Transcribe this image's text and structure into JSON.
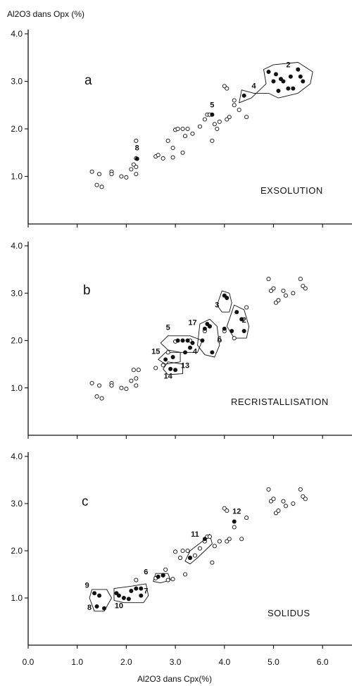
{
  "chart_data": {
    "type": "scatter",
    "ylabel": "Al2O3 dans Opx (%)",
    "xlabel": "Al2O3 dans Cpx(%)",
    "xlim": [
      0,
      6.6
    ],
    "ylim": [
      0,
      4.0
    ],
    "x_ticks": [
      "0.0",
      "1.0",
      "2.0",
      "3.0",
      "4.0",
      "5.0",
      "6.0"
    ],
    "y_ticks": [
      "1.0",
      "2.0",
      "3.0",
      "4.0"
    ],
    "panels": [
      {
        "letter": "a",
        "name": "EXSOLUTION",
        "open_points": [
          [
            1.3,
            1.1
          ],
          [
            1.45,
            1.05
          ],
          [
            1.4,
            0.82
          ],
          [
            1.5,
            0.78
          ],
          [
            1.7,
            1.1
          ],
          [
            1.7,
            1.05
          ],
          [
            1.9,
            1.0
          ],
          [
            2.0,
            0.98
          ],
          [
            2.1,
            1.15
          ],
          [
            2.15,
            1.25
          ],
          [
            2.2,
            1.2
          ],
          [
            2.2,
            1.05
          ],
          [
            2.2,
            1.75
          ],
          [
            2.2,
            1.38
          ],
          [
            2.6,
            1.42
          ],
          [
            2.65,
            1.45
          ],
          [
            2.75,
            1.38
          ],
          [
            2.85,
            1.75
          ],
          [
            2.95,
            1.4
          ],
          [
            2.95,
            1.6
          ],
          [
            3.0,
            1.98
          ],
          [
            3.05,
            2.0
          ],
          [
            3.15,
            1.5
          ],
          [
            3.15,
            2.0
          ],
          [
            3.2,
            1.85
          ],
          [
            3.25,
            2.0
          ],
          [
            3.35,
            1.9
          ],
          [
            3.5,
            2.05
          ],
          [
            3.6,
            2.2
          ],
          [
            3.65,
            2.3
          ],
          [
            3.7,
            2.3
          ],
          [
            3.75,
            1.75
          ],
          [
            3.8,
            2.1
          ],
          [
            3.85,
            2.0
          ],
          [
            3.9,
            2.15
          ],
          [
            4.0,
            2.9
          ],
          [
            4.05,
            2.85
          ],
          [
            4.05,
            2.2
          ],
          [
            4.1,
            2.25
          ],
          [
            4.2,
            2.6
          ],
          [
            4.2,
            2.5
          ],
          [
            4.3,
            2.4
          ],
          [
            4.45,
            2.25
          ]
        ],
        "filled_points": [
          [
            2.22,
            1.37
          ],
          [
            3.75,
            2.3
          ],
          [
            4.4,
            2.7
          ],
          [
            4.9,
            3.2
          ],
          [
            5.0,
            3.0
          ],
          [
            5.05,
            3.15
          ],
          [
            5.1,
            2.8
          ],
          [
            5.15,
            3.05
          ],
          [
            5.2,
            3.0
          ],
          [
            5.3,
            2.85
          ],
          [
            5.35,
            3.1
          ],
          [
            5.4,
            2.85
          ],
          [
            5.5,
            3.25
          ],
          [
            5.55,
            3.1
          ],
          [
            5.6,
            3.0
          ]
        ],
        "labels": [
          {
            "text": "2",
            "x": 5.3,
            "y": 3.3
          },
          {
            "text": "4",
            "x": 4.6,
            "y": 2.85
          },
          {
            "text": "5",
            "x": 3.75,
            "y": 2.45
          },
          {
            "text": "8",
            "x": 2.22,
            "y": 1.55
          }
        ]
      },
      {
        "letter": "b",
        "name": "RECRISTALLISATION",
        "open_points": [
          [
            1.3,
            1.1
          ],
          [
            1.45,
            1.05
          ],
          [
            1.4,
            0.82
          ],
          [
            1.5,
            0.78
          ],
          [
            1.7,
            1.1
          ],
          [
            1.7,
            1.05
          ],
          [
            1.9,
            1.0
          ],
          [
            2.0,
            0.98
          ],
          [
            2.1,
            1.15
          ],
          [
            2.15,
            1.38
          ],
          [
            2.2,
            1.2
          ],
          [
            2.2,
            1.05
          ],
          [
            2.25,
            1.38
          ],
          [
            2.6,
            1.42
          ],
          [
            2.75,
            1.48
          ],
          [
            2.85,
            1.75
          ],
          [
            3.0,
            1.98
          ],
          [
            3.3,
            2.0
          ],
          [
            3.6,
            2.2
          ],
          [
            3.7,
            2.3
          ],
          [
            3.9,
            2.0
          ],
          [
            4.0,
            2.2
          ],
          [
            4.2,
            2.05
          ],
          [
            4.45,
            2.7
          ],
          [
            4.9,
            3.3
          ],
          [
            4.95,
            3.05
          ],
          [
            5.0,
            3.1
          ],
          [
            5.05,
            2.8
          ],
          [
            5.1,
            2.85
          ],
          [
            5.2,
            3.05
          ],
          [
            5.25,
            2.95
          ],
          [
            5.4,
            3.0
          ],
          [
            5.55,
            3.3
          ],
          [
            5.6,
            3.15
          ],
          [
            5.65,
            3.1
          ]
        ],
        "filled_points": [
          [
            2.8,
            1.6
          ],
          [
            2.95,
            1.65
          ],
          [
            2.9,
            1.4
          ],
          [
            3.0,
            1.38
          ],
          [
            3.05,
            2.0
          ],
          [
            3.15,
            2.0
          ],
          [
            3.25,
            2.0
          ],
          [
            3.3,
            1.85
          ],
          [
            3.35,
            1.95
          ],
          [
            3.2,
            1.75
          ],
          [
            3.6,
            2.25
          ],
          [
            3.65,
            2.35
          ],
          [
            3.7,
            2.3
          ],
          [
            3.55,
            2.0
          ],
          [
            3.75,
            1.75
          ],
          [
            4.0,
            2.95
          ],
          [
            4.05,
            2.9
          ],
          [
            4.0,
            2.25
          ],
          [
            4.15,
            2.2
          ],
          [
            4.25,
            2.6
          ],
          [
            4.35,
            2.45
          ],
          [
            4.4,
            2.2
          ]
        ],
        "labels": [
          {
            "text": "3",
            "x": 3.85,
            "y": 2.7
          },
          {
            "text": "2",
            "x": 4.4,
            "y": 2.38
          },
          {
            "text": "17",
            "x": 3.35,
            "y": 2.33
          },
          {
            "text": "5",
            "x": 2.85,
            "y": 2.22
          },
          {
            "text": "6",
            "x": 3.9,
            "y": 1.98
          },
          {
            "text": "4",
            "x": 3.4,
            "y": 1.72
          },
          {
            "text": "15",
            "x": 2.6,
            "y": 1.72
          },
          {
            "text": "13",
            "x": 3.2,
            "y": 1.42
          },
          {
            "text": "14",
            "x": 2.85,
            "y": 1.2
          }
        ]
      },
      {
        "letter": "c",
        "name": "SOLIDUS",
        "open_points": [
          [
            2.2,
            1.38
          ],
          [
            2.6,
            1.42
          ],
          [
            2.75,
            1.48
          ],
          [
            2.8,
            1.6
          ],
          [
            2.85,
            1.38
          ],
          [
            2.95,
            1.4
          ],
          [
            3.0,
            1.98
          ],
          [
            3.1,
            1.85
          ],
          [
            3.15,
            2.0
          ],
          [
            3.2,
            1.5
          ],
          [
            3.25,
            2.0
          ],
          [
            3.3,
            1.85
          ],
          [
            3.4,
            1.9
          ],
          [
            3.5,
            2.05
          ],
          [
            3.6,
            2.2
          ],
          [
            3.65,
            2.3
          ],
          [
            3.7,
            2.3
          ],
          [
            3.75,
            1.75
          ],
          [
            3.8,
            2.1
          ],
          [
            3.9,
            2.2
          ],
          [
            4.0,
            2.9
          ],
          [
            4.05,
            2.85
          ],
          [
            4.05,
            2.2
          ],
          [
            4.1,
            2.25
          ],
          [
            4.2,
            2.5
          ],
          [
            4.35,
            2.25
          ],
          [
            4.45,
            2.7
          ],
          [
            4.9,
            3.3
          ],
          [
            4.95,
            3.05
          ],
          [
            5.0,
            3.1
          ],
          [
            5.05,
            2.8
          ],
          [
            5.1,
            2.85
          ],
          [
            5.2,
            3.05
          ],
          [
            5.25,
            2.95
          ],
          [
            5.4,
            3.0
          ],
          [
            5.55,
            3.3
          ],
          [
            5.6,
            3.15
          ],
          [
            5.65,
            3.1
          ]
        ],
        "filled_points": [
          [
            1.35,
            1.1
          ],
          [
            1.45,
            1.05
          ],
          [
            1.4,
            0.82
          ],
          [
            1.55,
            0.78
          ],
          [
            1.8,
            1.1
          ],
          [
            1.85,
            1.05
          ],
          [
            1.95,
            1.0
          ],
          [
            2.05,
            0.98
          ],
          [
            2.1,
            1.15
          ],
          [
            2.2,
            1.2
          ],
          [
            2.3,
            1.05
          ],
          [
            2.3,
            1.2
          ],
          [
            2.65,
            1.45
          ],
          [
            2.75,
            1.48
          ],
          [
            3.3,
            1.85
          ],
          [
            3.6,
            2.25
          ],
          [
            4.2,
            2.62
          ]
        ],
        "labels": [
          {
            "text": "9",
            "x": 1.2,
            "y": 1.22
          },
          {
            "text": "8",
            "x": 1.25,
            "y": 0.75
          },
          {
            "text": "10",
            "x": 1.85,
            "y": 0.78
          },
          {
            "text": "7",
            "x": 2.4,
            "y": 1.1
          },
          {
            "text": "6",
            "x": 2.4,
            "y": 1.5
          },
          {
            "text": "11",
            "x": 3.4,
            "y": 2.3
          },
          {
            "text": "12",
            "x": 4.25,
            "y": 2.78
          }
        ]
      }
    ]
  }
}
